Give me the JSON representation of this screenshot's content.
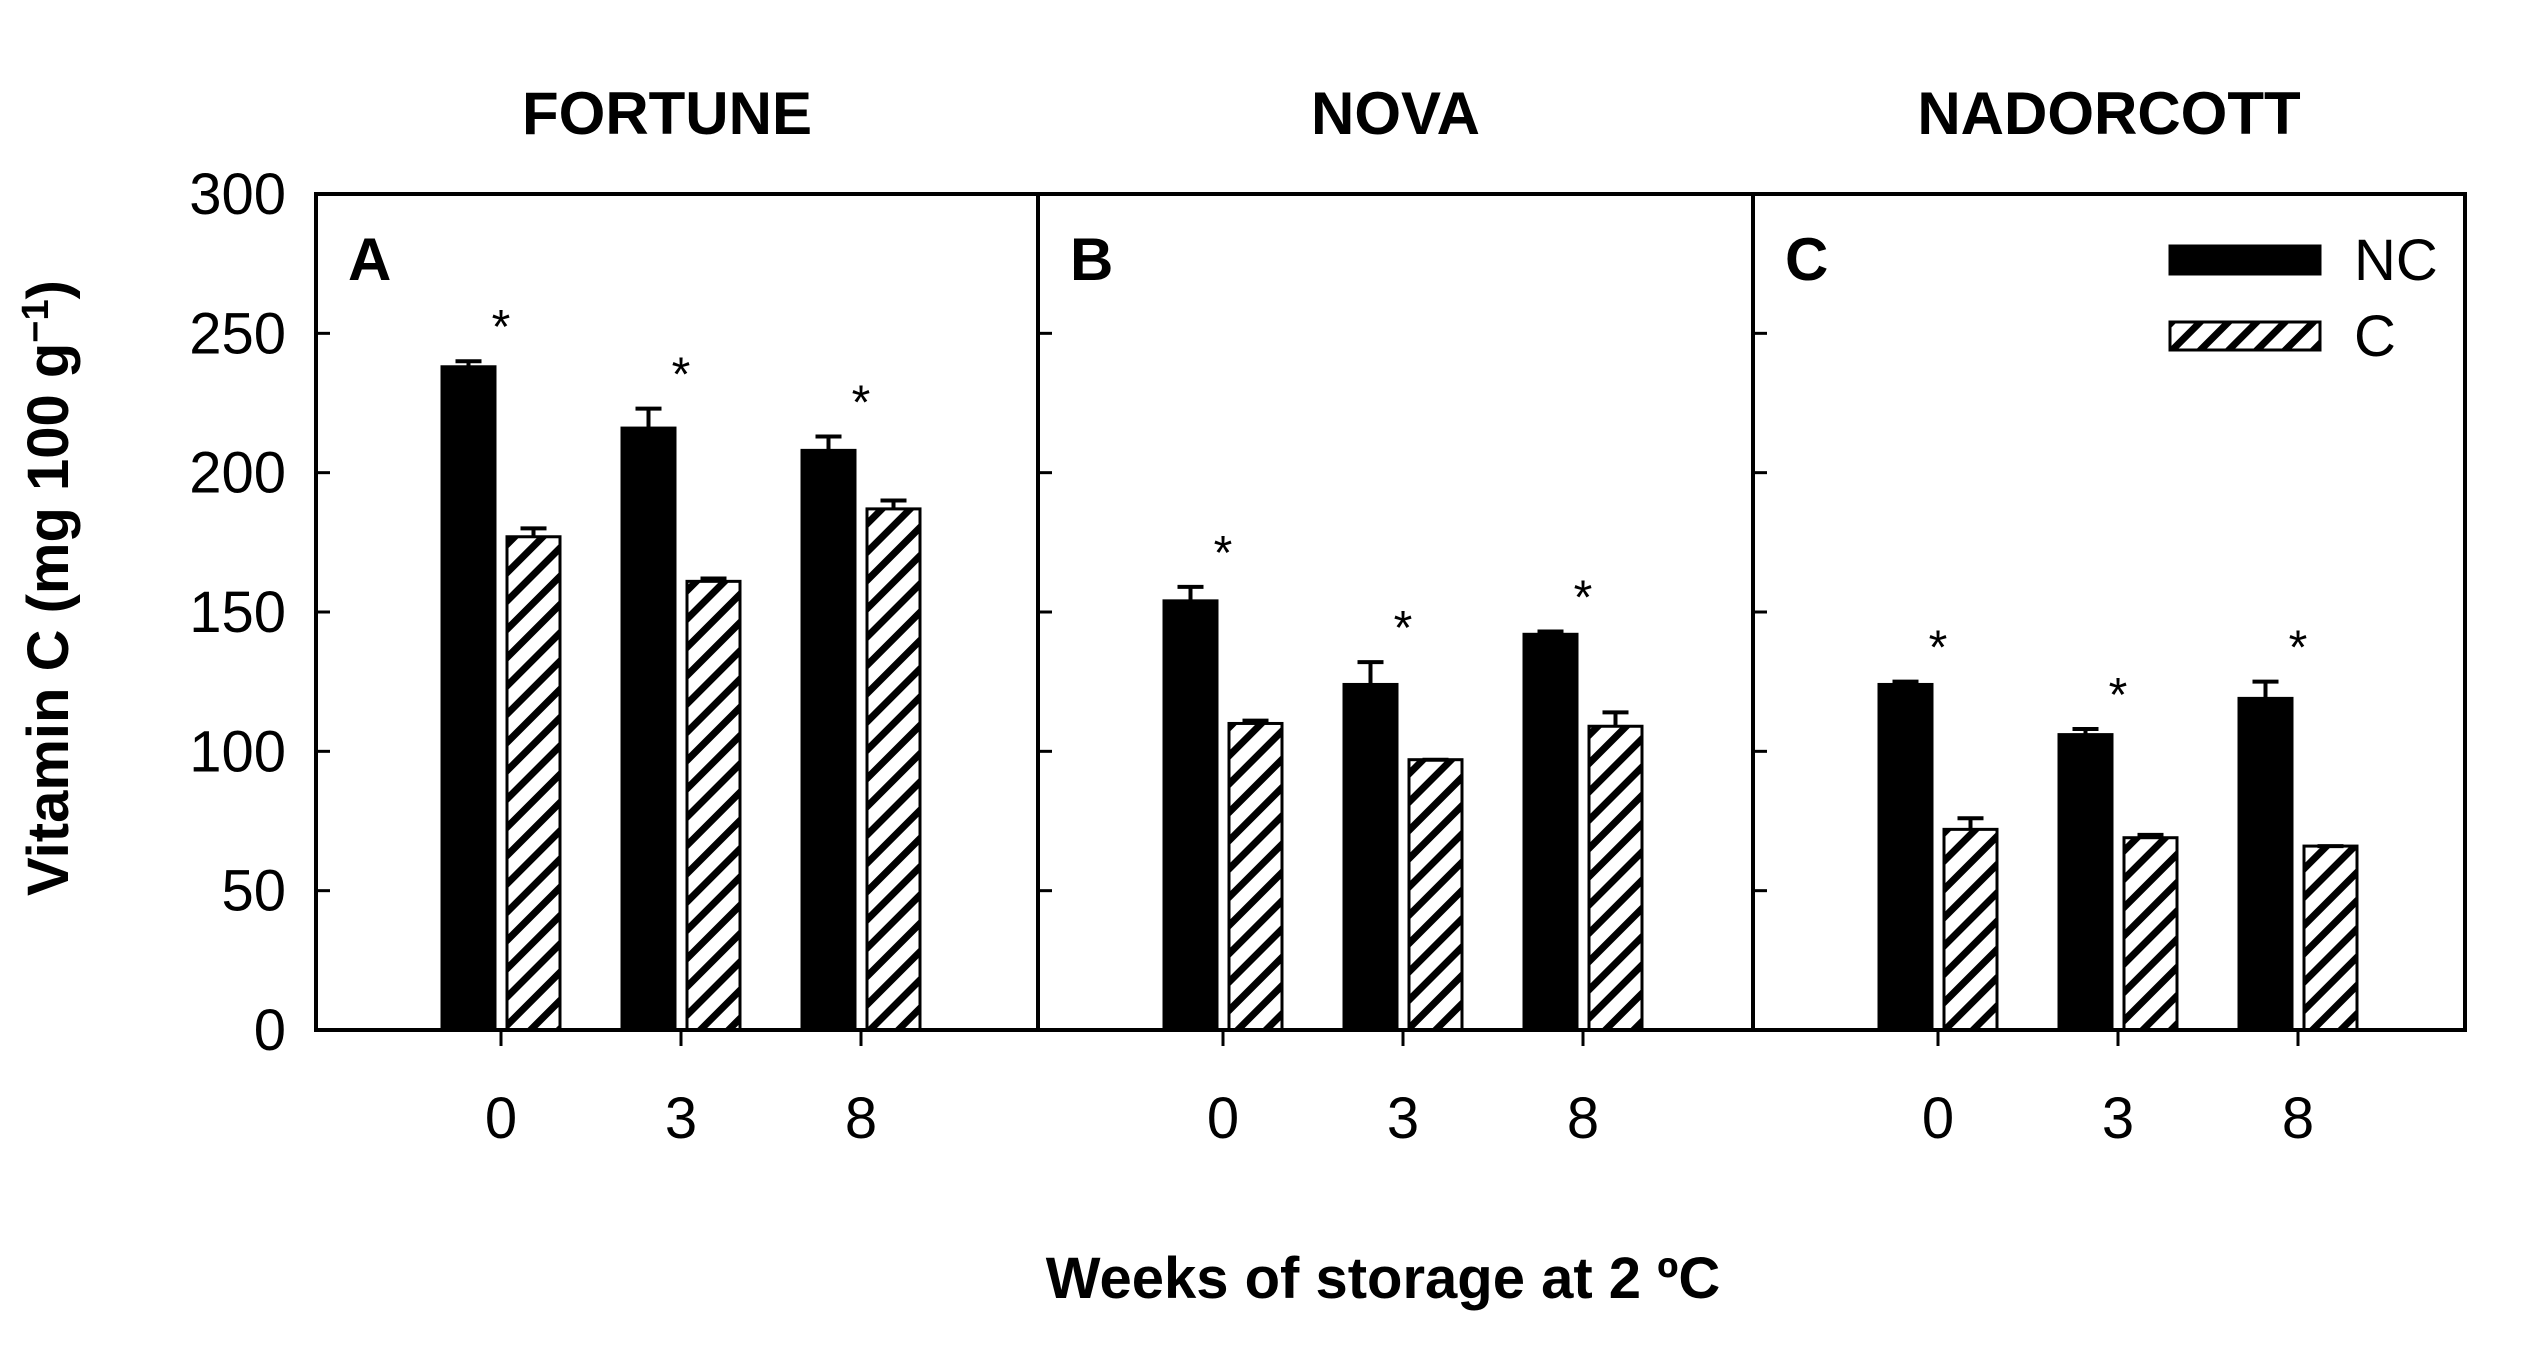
{
  "figure": {
    "ylabel_main": "Vitamin C (mg 100 g",
    "ylabel_sup": "−1",
    "ylabel_close": ")",
    "xlabel": "Weeks of storage at 2 ºC",
    "significance_marker": "*"
  },
  "legend": {
    "items": [
      {
        "label": "NC",
        "style": "solid",
        "color": "#000000"
      },
      {
        "label": "C",
        "style": "hatched",
        "color": "#000000"
      }
    ]
  },
  "colors": {
    "bar": "#000000",
    "background": "#ffffff"
  },
  "chart_data": [
    {
      "type": "bar",
      "title": "FORTUNE",
      "panel_letter": "A",
      "categories": [
        "0",
        "3",
        "8"
      ],
      "ylim": [
        0,
        300
      ],
      "yticks": [
        "0",
        "50",
        "100",
        "150",
        "200",
        "250",
        "300"
      ],
      "series": [
        {
          "name": "NC",
          "values": [
            238,
            216,
            208
          ],
          "errors": [
            2,
            7,
            5
          ]
        },
        {
          "name": "C",
          "values": [
            177,
            161,
            187
          ],
          "errors": [
            3,
            1,
            3
          ]
        }
      ],
      "significant": [
        true,
        true,
        true
      ]
    },
    {
      "type": "bar",
      "title": "NOVA",
      "panel_letter": "B",
      "categories": [
        "0",
        "3",
        "8"
      ],
      "ylim": [
        0,
        300
      ],
      "series": [
        {
          "name": "NC",
          "values": [
            154,
            124,
            142
          ],
          "errors": [
            5,
            8,
            1
          ]
        },
        {
          "name": "C",
          "values": [
            110,
            97,
            109
          ],
          "errors": [
            1,
            0,
            5
          ]
        }
      ],
      "significant": [
        true,
        true,
        true
      ]
    },
    {
      "type": "bar",
      "title": "NADORCOTT",
      "panel_letter": "C",
      "categories": [
        "0",
        "3",
        "8"
      ],
      "ylim": [
        0,
        300
      ],
      "series": [
        {
          "name": "NC",
          "values": [
            124,
            106,
            119
          ],
          "errors": [
            1,
            2,
            6
          ]
        },
        {
          "name": "C",
          "values": [
            72,
            69,
            66
          ],
          "errors": [
            4,
            1,
            0
          ]
        }
      ],
      "significant": [
        true,
        true,
        true
      ]
    }
  ]
}
